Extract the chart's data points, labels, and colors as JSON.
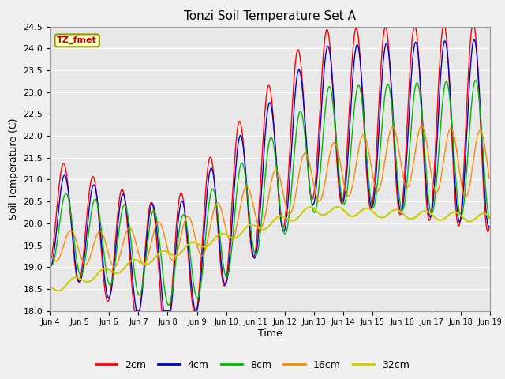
{
  "title": "Tonzi Soil Temperature Set A",
  "xlabel": "Time",
  "ylabel": "Soil Temperature (C)",
  "ylim": [
    18.0,
    24.5
  ],
  "bg_color": "#e8e8e8",
  "fig_color": "#f0f0f0",
  "legend_label": "TZ_fmet",
  "line_colors": {
    "2cm": "#ff0000",
    "4cm": "#0000cc",
    "8cm": "#00bb00",
    "16cm": "#ff8800",
    "32cm": "#cccc00"
  },
  "x_tick_labels": [
    "Jun 4",
    "Jun 5",
    "Jun 6",
    "Jun 7",
    "Jun 8",
    "Jun 9",
    "Jun 10",
    "Jun 11",
    "Jun 12",
    "Jun 13",
    "Jun 14",
    "Jun 15",
    "Jun 16",
    "Jun 17",
    "Jun 18",
    "Jun 19"
  ],
  "yticks": [
    18.0,
    18.5,
    19.0,
    19.5,
    20.0,
    20.5,
    21.0,
    21.5,
    22.0,
    22.5,
    23.0,
    23.5,
    24.0,
    24.5
  ],
  "n_points": 720
}
